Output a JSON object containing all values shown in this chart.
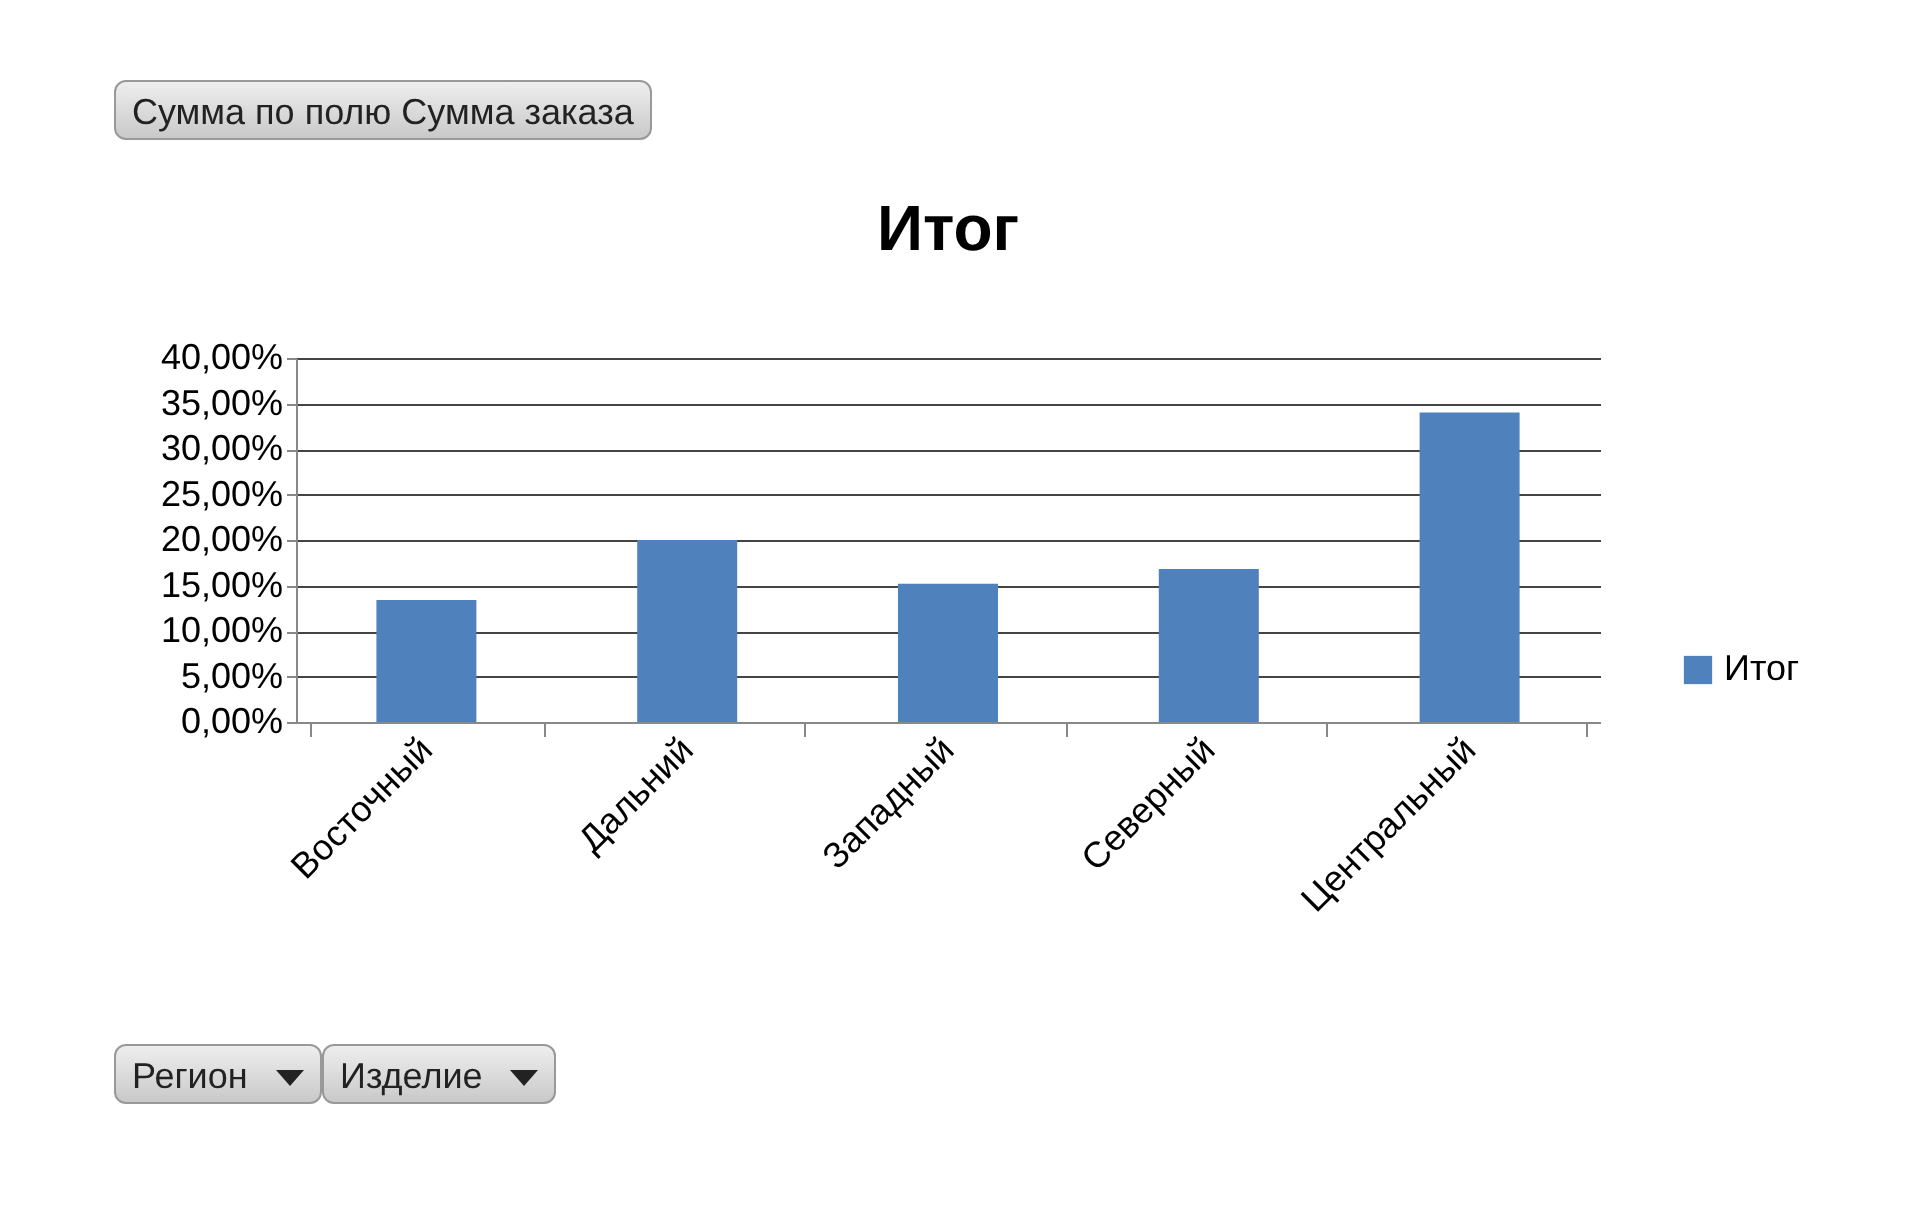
{
  "chart_data": {
    "type": "bar",
    "title": "Итог",
    "categories": [
      "Восточный",
      "Дальний",
      "Западный",
      "Северный",
      "Центральный"
    ],
    "series": [
      {
        "name": "Итог",
        "color": "#4f81bd",
        "values": [
          13.4,
          20.0,
          15.2,
          16.8,
          34.0
        ]
      }
    ],
    "ylim": [
      0,
      40
    ],
    "yticks": [
      {
        "value": 0,
        "label": "0,00%"
      },
      {
        "value": 5,
        "label": "5,00%"
      },
      {
        "value": 10,
        "label": "10,00%"
      },
      {
        "value": 15,
        "label": "15,00%"
      },
      {
        "value": 20,
        "label": "20,00%"
      },
      {
        "value": 25,
        "label": "25,00%"
      },
      {
        "value": 30,
        "label": "30,00%"
      },
      {
        "value": 35,
        "label": "35,00%"
      },
      {
        "value": 40,
        "label": "40,00%"
      }
    ],
    "grid": "y",
    "legend": "right",
    "annotations": [
      "Сумма по полю Сумма заказа",
      "Регион",
      "Изделие"
    ]
  }
}
